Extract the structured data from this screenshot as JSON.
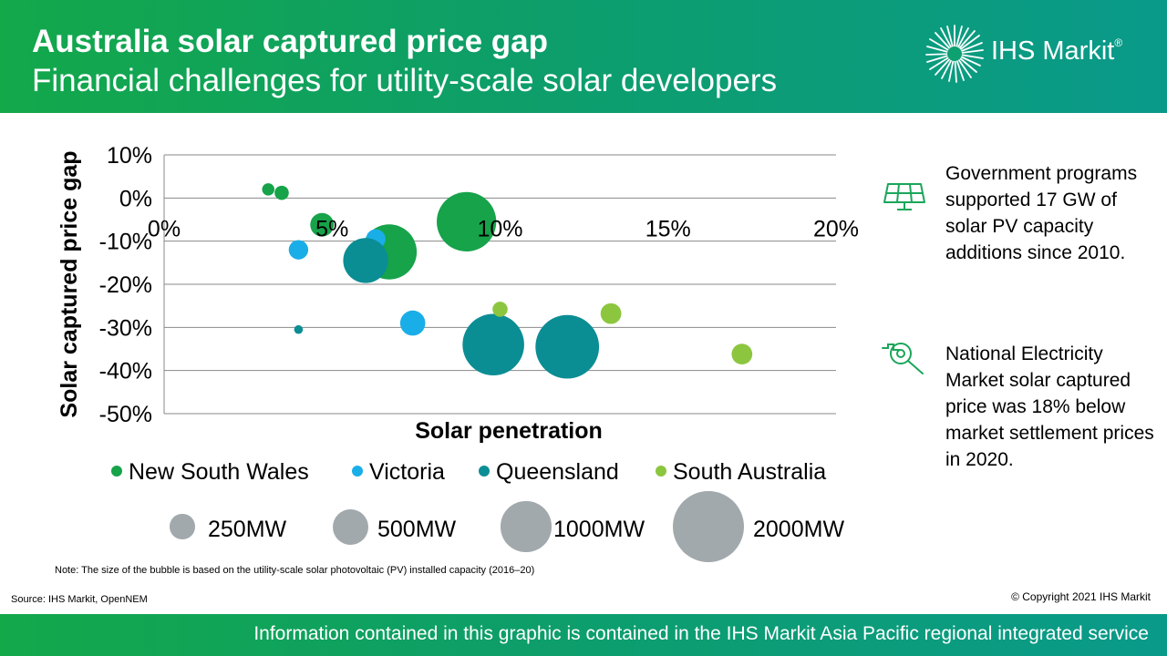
{
  "header": {
    "title": "Australia solar captured price gap",
    "subtitle": "Financial challenges for utility-scale solar developers",
    "logo_text": "IHS Markit",
    "logo_reg": "®"
  },
  "chart_data": {
    "type": "scatter",
    "xlabel": "Solar penetration",
    "ylabel": "Solar captured price gap",
    "xlim": [
      0,
      0.2
    ],
    "ylim": [
      -0.5,
      0.1
    ],
    "x_ticks": [
      "0%",
      "5%",
      "10%",
      "15%",
      "20%"
    ],
    "y_ticks": [
      "10%",
      "0%",
      "-10%",
      "-20%",
      "-30%",
      "-40%",
      "-50%"
    ],
    "grid": "horizontal",
    "legend_placement": "bottom",
    "series": [
      {
        "name": "New South Wales",
        "color": "#16a34a",
        "points": [
          {
            "x": 0.031,
            "y": 0.02,
            "size_mw": 60
          },
          {
            "x": 0.035,
            "y": 0.012,
            "size_mw": 80
          },
          {
            "x": 0.047,
            "y": -0.062,
            "size_mw": 220
          },
          {
            "x": 0.067,
            "y": -0.125,
            "size_mw": 1200
          },
          {
            "x": 0.09,
            "y": -0.055,
            "size_mw": 1400
          }
        ]
      },
      {
        "name": "Victoria",
        "color": "#1aaee8",
        "points": [
          {
            "x": 0.04,
            "y": -0.12,
            "size_mw": 150
          },
          {
            "x": 0.063,
            "y": -0.095,
            "size_mw": 150
          },
          {
            "x": 0.074,
            "y": -0.29,
            "size_mw": 250
          }
        ]
      },
      {
        "name": "Queensland",
        "color": "#0b8d94",
        "points": [
          {
            "x": 0.04,
            "y": -0.305,
            "size_mw": 30
          },
          {
            "x": 0.06,
            "y": -0.145,
            "size_mw": 800
          },
          {
            "x": 0.098,
            "y": -0.34,
            "size_mw": 1500
          },
          {
            "x": 0.12,
            "y": -0.345,
            "size_mw": 1600
          }
        ]
      },
      {
        "name": "South Australia",
        "color": "#8cc63f",
        "points": [
          {
            "x": 0.1,
            "y": -0.258,
            "size_mw": 90
          },
          {
            "x": 0.133,
            "y": -0.268,
            "size_mw": 170
          },
          {
            "x": 0.172,
            "y": -0.362,
            "size_mw": 170
          }
        ]
      }
    ],
    "size_legend": [
      "250MW",
      "500MW",
      "1000MW",
      "2000MW"
    ],
    "size_legend_values_mw": [
      250,
      500,
      1000,
      2000
    ]
  },
  "note": "Note: The size of the bubble is based on the utility-scale solar photovoltaic (PV) installed capacity (2016–20)",
  "source": "Source: IHS Markit, OpenNEM",
  "copyright": "© Copyright 2021 IHS Markit",
  "side": {
    "items": [
      {
        "icon": "solar-panel-icon",
        "text": "Government programs supported 17 GW of solar PV capacity additions since 2010."
      },
      {
        "icon": "magnifier-graph-icon",
        "text": "National Electricity Market solar captured price was 18% below market settlement prices in 2020."
      }
    ],
    "icon_color": "#1ba65a"
  },
  "footer": {
    "text": "Information contained in this graphic is contained in the IHS Markit Asia Pacific regional integrated service"
  }
}
